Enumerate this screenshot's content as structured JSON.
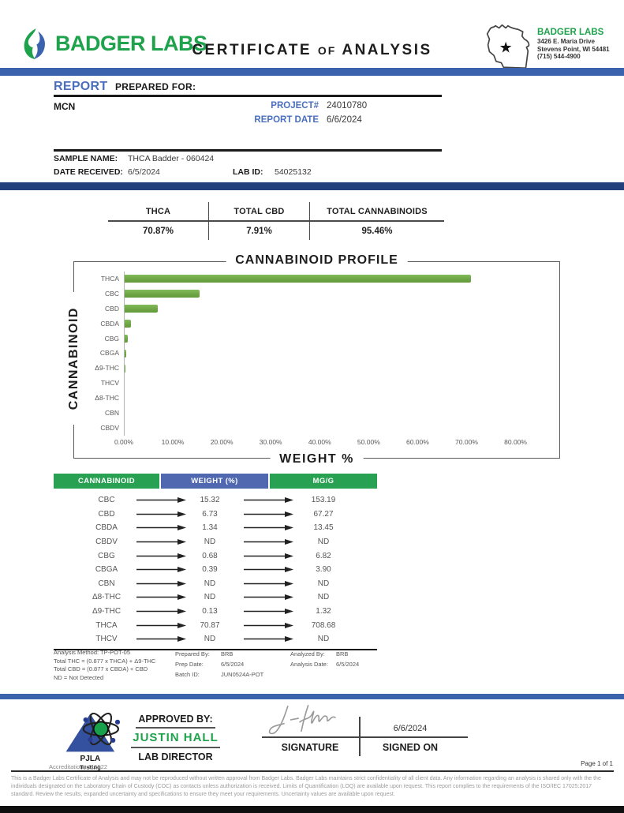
{
  "header": {
    "brand_name": "BADGER LABS",
    "title_certificate": "CERTIFICATE",
    "title_of": "OF",
    "title_analysis": "ANALYSIS",
    "lab_card": {
      "name": "BADGER LABS",
      "address1": "3426 E. Maria Drive",
      "address2": "Stevens Point, WI 54481",
      "phone": "(715) 544-4900"
    }
  },
  "report": {
    "section_title_blue": "REPORT",
    "section_title_black": "PREPARED FOR:",
    "client": "MCN",
    "project_label": "PROJECT#",
    "project_value": "24010780",
    "report_date_label": "REPORT DATE",
    "report_date_value": "6/6/2024",
    "sample_name_label": "SAMPLE NAME:",
    "sample_name_value": "THCA Badder - 060424",
    "date_received_label": "DATE RECEIVED:",
    "date_received_value": "6/5/2024",
    "lab_id_label": "LAB ID:",
    "lab_id_value": "54025132"
  },
  "summary": {
    "columns": [
      {
        "label": "THCA",
        "value": "70.87%"
      },
      {
        "label": "TOTAL CBD",
        "value": "7.91%"
      },
      {
        "label": "TOTAL CANNABINOIDS",
        "value": "95.46%"
      }
    ]
  },
  "chart_data": {
    "type": "bar",
    "orientation": "horizontal",
    "title": "CANNABINOID PROFILE",
    "ylabel": "CANNABINOID",
    "xlabel": "WEIGHT %",
    "categories": [
      "THCA",
      "CBC",
      "CBD",
      "CBDA",
      "CBG",
      "CBGA",
      "Δ9-THC",
      "THCV",
      "Δ8-THC",
      "CBN",
      "CBDV"
    ],
    "values": [
      70.87,
      15.32,
      6.73,
      1.34,
      0.68,
      0.39,
      0.13,
      0,
      0,
      0,
      0
    ],
    "xlim": [
      0,
      80
    ],
    "grid": false,
    "x_ticks": [
      {
        "value": 0,
        "label": "0.00%"
      },
      {
        "value": 10,
        "label": "10.00%"
      },
      {
        "value": 20,
        "label": "20.00%"
      },
      {
        "value": 30,
        "label": "30.00%"
      },
      {
        "value": 40,
        "label": "40.00%"
      },
      {
        "value": 50,
        "label": "50.00%"
      },
      {
        "value": 60,
        "label": "60.00%"
      },
      {
        "value": 70,
        "label": "70.00%"
      },
      {
        "value": 80,
        "label": "80.00%"
      }
    ],
    "bar_color": "#70ad47"
  },
  "table": {
    "headers": [
      "CANNABINOID",
      "WEIGHT (%)",
      "MG/G"
    ],
    "rows": [
      {
        "name": "CBC",
        "weight": "15.32",
        "mgg": "153.19"
      },
      {
        "name": "CBD",
        "weight": "6.73",
        "mgg": "67.27"
      },
      {
        "name": "CBDA",
        "weight": "1.34",
        "mgg": "13.45"
      },
      {
        "name": "CBDV",
        "weight": "ND",
        "mgg": "ND"
      },
      {
        "name": "CBG",
        "weight": "0.68",
        "mgg": "6.82"
      },
      {
        "name": "CBGA",
        "weight": "0.39",
        "mgg": "3.90"
      },
      {
        "name": "CBN",
        "weight": "ND",
        "mgg": "ND"
      },
      {
        "name": "Δ8-THC",
        "weight": "ND",
        "mgg": "ND"
      },
      {
        "name": "Δ9-THC",
        "weight": "0.13",
        "mgg": "1.32"
      },
      {
        "name": "THCA",
        "weight": "70.87",
        "mgg": "708.68"
      },
      {
        "name": "THCV",
        "weight": "ND",
        "mgg": "ND"
      }
    ]
  },
  "footnotes": {
    "left": [
      "Analysis Method: TP-POT-05",
      "Total THC = (0.877 x THCA) + Δ9-THC",
      "Total CBD = (0.877 x CBDA) + CBD",
      "ND = Not Detected"
    ],
    "middle": [
      {
        "label": "Prepared By:",
        "value": "BRB"
      },
      {
        "label": "Prep Date:",
        "value": "6/5/2024"
      },
      {
        "label": "Batch ID:",
        "value": "JUN0524A-POT"
      }
    ],
    "right": [
      {
        "label": "Analyzed By:",
        "value": "BRB"
      },
      {
        "label": "Analysis Date:",
        "value": "6/5/2024"
      }
    ]
  },
  "approval": {
    "approved_by_label": "APPROVED BY:",
    "approver_name": "JUSTIN HALL",
    "approver_title": "LAB DIRECTOR",
    "signature_label": "SIGNATURE",
    "signed_on_value": "6/6/2024",
    "signed_on_label": "SIGNED ON",
    "pjla_line1": "PJLA",
    "pjla_line2": "Testing",
    "accreditation": "Accreditation# 115522"
  },
  "footer": {
    "page": "Page 1 of 1",
    "disclaimer": "This is a Badger Labs Certificate of Analysis and may not be reproduced without written approval from Badger Labs. Badger Labs maintains strict confidentiality of all client data. Any information regarding an analysis is shared only with the the individuals designated on the Laboratory Chain of Custody (COC) as contacts unless authorization is received. Limits of Quantification (LOQ) are available upon request. This report complies to the requirements of the ISO/IEC 17025:2017 standard. Review the results, expanded uncertainty and specifications to ensure they meet your requirements. Uncertainty values are available upon request."
  },
  "colors": {
    "brand_green": "#1fa24c",
    "accent_blue": "#3a62ad",
    "navy_bar": "#24407c",
    "label_blue": "#4a6fbe",
    "table_header_green": "#28a152",
    "table_header_blue": "#4f68b0",
    "bar_green": "#70ad47"
  }
}
